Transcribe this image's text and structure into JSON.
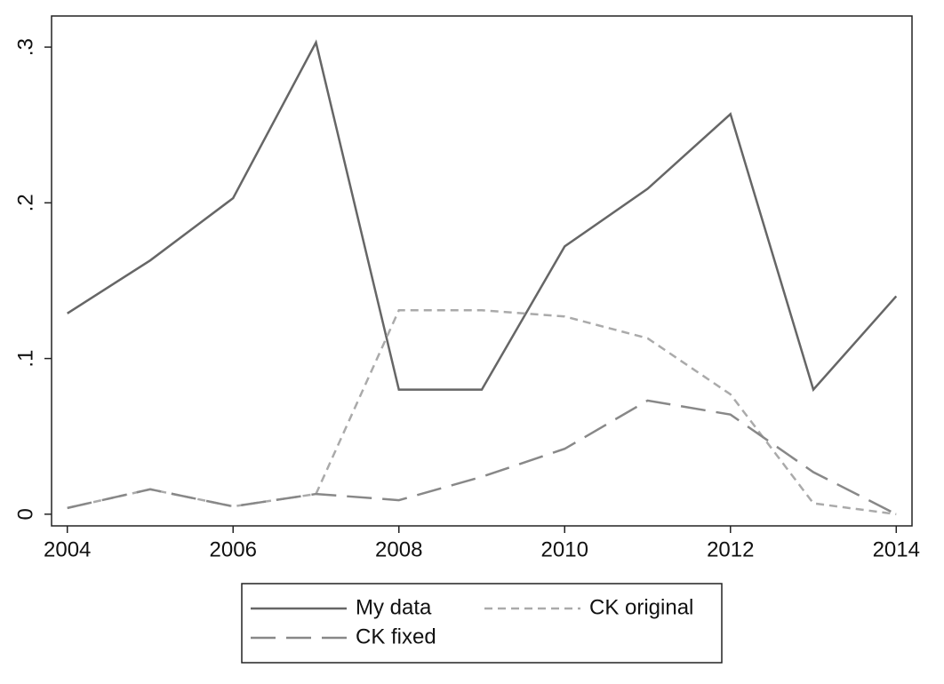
{
  "chart_data": {
    "type": "line",
    "x": [
      2004,
      2005,
      2006,
      2007,
      2008,
      2009,
      2010,
      2011,
      2012,
      2013,
      2014
    ],
    "series": [
      {
        "name": "My data",
        "color": "#666666",
        "dash": "solid",
        "values": [
          0.129,
          0.163,
          0.203,
          0.303,
          0.08,
          0.08,
          0.172,
          0.209,
          0.257,
          0.08,
          0.14
        ]
      },
      {
        "name": "CK original",
        "color": "#aaaaaa",
        "dash": "short",
        "values": [
          0.004,
          0.016,
          0.005,
          0.013,
          0.131,
          0.131,
          0.127,
          0.113,
          0.077,
          0.007,
          0
        ]
      },
      {
        "name": "CK fixed",
        "color": "#888888",
        "dash": "long",
        "values": [
          0.004,
          0.016,
          0.005,
          0.013,
          0.009,
          0.024,
          0.042,
          0.073,
          0.064,
          0.027,
          0
        ]
      }
    ],
    "xlim": [
      2003.81,
      2014.19
    ],
    "xticks": [
      2004,
      2006,
      2008,
      2010,
      2012,
      2014
    ],
    "ylim": [
      -0.0075,
      0.32
    ],
    "yticks": [
      0,
      {
        "value": 0.1,
        "label": ".1"
      },
      {
        "value": 0.2,
        "label": ".2"
      },
      {
        "value": 0.3,
        "label": ".3"
      }
    ],
    "grid": false
  }
}
